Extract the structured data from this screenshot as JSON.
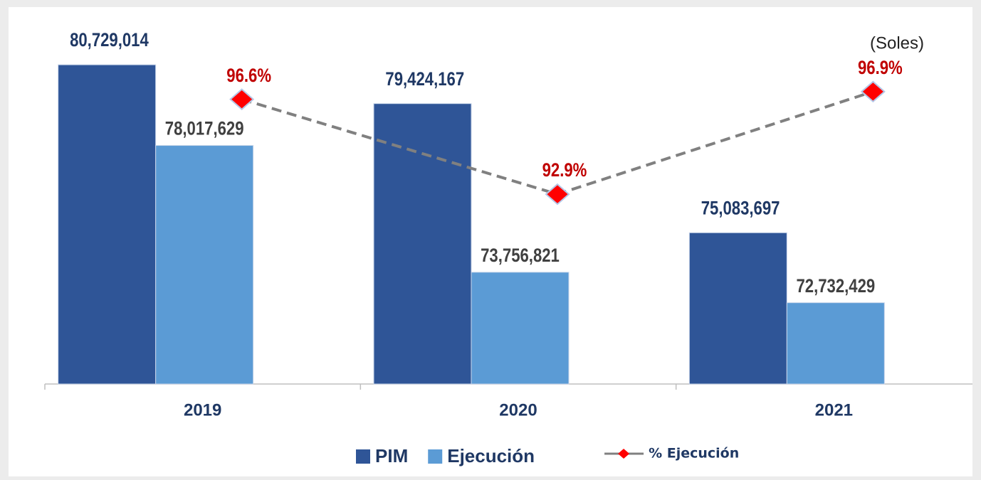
{
  "chart_data": {
    "type": "bar",
    "annotations": [
      "(Soles)"
    ],
    "categories": [
      "2019",
      "2020",
      "2021"
    ],
    "series": [
      {
        "name": "PIM",
        "color": "#2f5597",
        "values": [
          80729014,
          79424167,
          75083697
        ],
        "value_labels": [
          "80,729,014",
          "79,424,167",
          "75,083,697"
        ]
      },
      {
        "name": "Ejecución",
        "color": "#5b9bd5",
        "values": [
          78017629,
          73756821,
          72732429
        ],
        "value_labels": [
          "78,017,629",
          "73,756,821",
          "72,732,429"
        ]
      },
      {
        "name": "% Ejecución",
        "type": "line",
        "axis": "y2",
        "color": "#808080",
        "marker_color": "#ff0000",
        "values": [
          96.6,
          92.9,
          96.9
        ],
        "value_labels": [
          "96.6%",
          "92.9%",
          "96.9%"
        ]
      }
    ],
    "ylim": [
      70000000,
      82500000
    ],
    "y2lim": [
      85.5,
      100
    ],
    "grid": false
  }
}
